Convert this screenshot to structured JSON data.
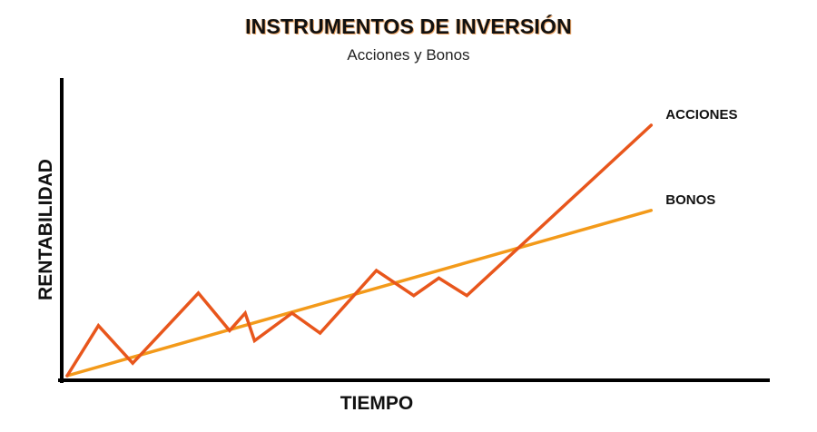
{
  "chart_data": {
    "type": "line",
    "title": "INSTRUMENTOS DE INVERSIÓN",
    "subtitle": "Acciones y Bonos",
    "xlabel": "TIEMPO",
    "ylabel": "RENTABILIDAD",
    "xlim": [
      0,
      100
    ],
    "ylim": [
      0,
      100
    ],
    "grid": false,
    "legend": "inline-right",
    "series": [
      {
        "name": "ACCIONES",
        "color": "#e8561c",
        "points": [
          [
            0,
            0
          ],
          [
            5,
            20
          ],
          [
            10.5,
            5
          ],
          [
            21,
            33
          ],
          [
            26,
            18
          ],
          [
            28.5,
            25
          ],
          [
            30,
            14
          ],
          [
            36,
            25
          ],
          [
            40.5,
            17
          ],
          [
            49.5,
            42
          ],
          [
            55.5,
            32
          ],
          [
            59.5,
            39
          ],
          [
            64,
            32
          ],
          [
            93.5,
            100
          ]
        ]
      },
      {
        "name": "BONOS",
        "color": "#f39a1a",
        "points": [
          [
            0,
            0
          ],
          [
            93.5,
            66
          ]
        ]
      }
    ]
  }
}
